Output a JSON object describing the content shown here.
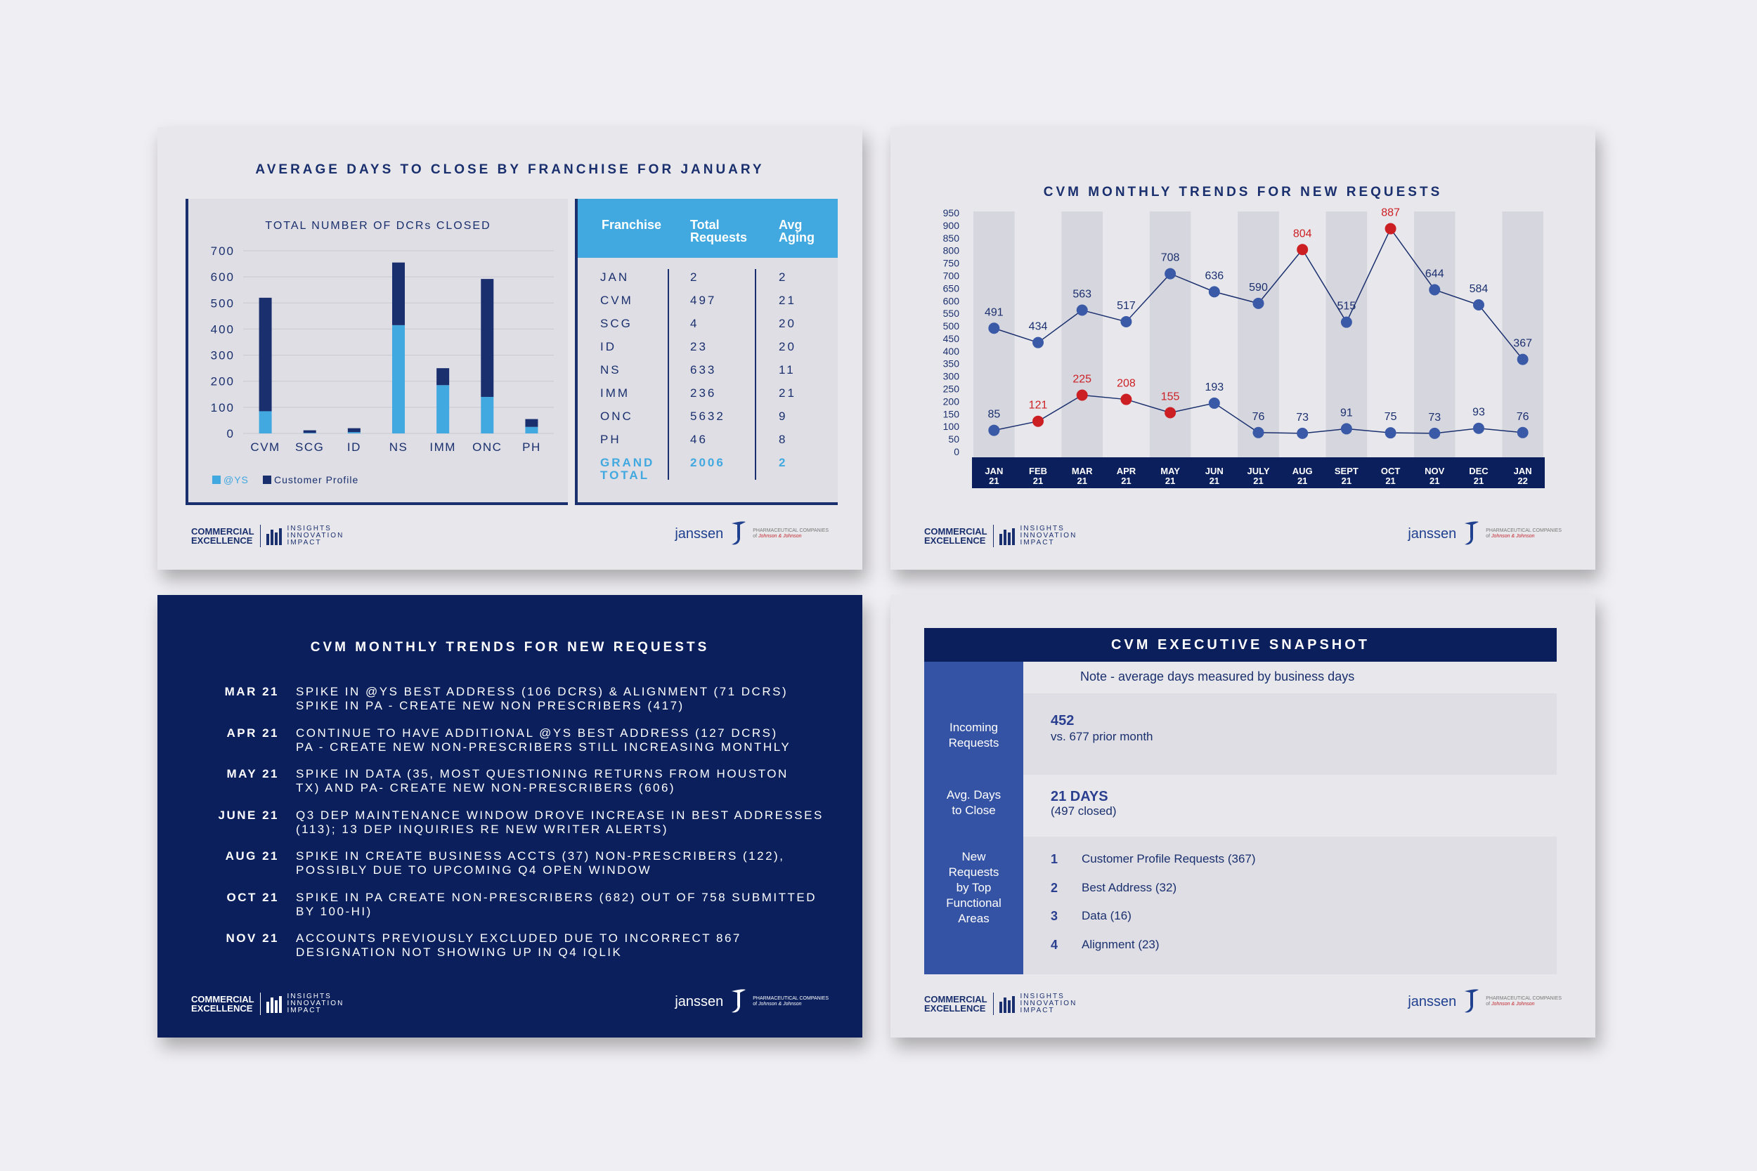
{
  "footer": {
    "ce_line1": "COMMERCIAL",
    "ce_line2": "EXCELLENCE",
    "iii_line1": "INSIGHTS",
    "iii_line2": "INNOVATION",
    "iii_line3": "IMPACT",
    "janssen": "janssen",
    "pharma_line1": "PHARMACEUTICAL COMPANIES",
    "pharma_of": "of",
    "pharma_jj": "Johnson & Johnson"
  },
  "slide1": {
    "title": "AVERAGE DAYS TO CLOSE BY FRANCHISE FOR JANUARY",
    "table": {
      "headers": [
        "Franchise",
        "Total",
        "Requests",
        "Avg",
        "Aging"
      ],
      "rows": [
        [
          "JAN",
          "2",
          "2"
        ],
        [
          "CVM",
          "497",
          "21"
        ],
        [
          "SCG",
          "4",
          "20"
        ],
        [
          "ID",
          "23",
          "20"
        ],
        [
          "NS",
          "633",
          "11"
        ],
        [
          "IMM",
          "236",
          "21"
        ],
        [
          "ONC",
          "5632",
          "9"
        ],
        [
          "PH",
          "46",
          "8"
        ]
      ],
      "total_label_1": "GRAND",
      "total_label_2": "TOTAL",
      "total_requests": "2006",
      "total_aging": "2"
    }
  },
  "slide2": {
    "title": "CVM MONTHLY TRENDS FOR NEW REQUESTS"
  },
  "slide3": {
    "title": "CVM MONTHLY TRENDS FOR NEW REQUESTS",
    "items": [
      {
        "date": "MAR 21",
        "line1": "SPIKE IN @YS BEST ADDRESS (106 DCRS) & ALIGNMENT (71 DCRS)",
        "line2": "SPIKE IN PA - CREATE NEW NON PRESCRIBERS (417)"
      },
      {
        "date": "APR 21",
        "line1": "CONTINUE TO HAVE ADDITIONAL @YS BEST ADDRESS (127 DCRS)",
        "line2": "PA - CREATE NEW NON-PRESCRIBERS STILL INCREASING MONTHLY"
      },
      {
        "date": "MAY 21",
        "line1": "SPIKE IN DATA (35, MOST QUESTIONING RETURNS FROM HOUSTON",
        "line2": "TX) AND PA- CREATE NEW NON-PRESCRIBERS (606)"
      },
      {
        "date": "JUNE 21",
        "line1": "Q3 DEP MAINTENANCE WINDOW DROVE INCREASE IN BEST ADDRESSES",
        "line2": "(113); 13 DEP INQUIRIES RE NEW WRITER ALERTS)"
      },
      {
        "date": "AUG 21",
        "line1": "SPIKE IN CREATE BUSINESS ACCTS (37) NON-PRESCRIBERS (122),",
        "line2": "POSSIBLY DUE TO UPCOMING Q4 OPEN WINDOW"
      },
      {
        "date": "OCT 21",
        "line1": "SPIKE IN PA CREATE NON-PRESCRIBERS  (682) OUT OF 758 SUBMITTED",
        "line2": "BY 100-HI)"
      },
      {
        "date": "NOV 21",
        "line1": "ACCOUNTS PREVIOUSLY EXCLUDED DUE TO INCORRECT 867",
        "line2": "DESIGNATION NOT SHOWING UP IN Q4 IQLIK"
      }
    ]
  },
  "slide4": {
    "title": "CVM EXECUTIVE SNAPSHOT",
    "note": "Note - average days measured by business days",
    "incoming_label_1": "Incoming",
    "incoming_label_2": "Requests",
    "incoming_value": "452",
    "incoming_sub": "vs. 677 prior month",
    "avg_label_1": "Avg. Days",
    "avg_label_2": "to Close",
    "avg_value": "21 DAYS",
    "avg_sub": "(497 closed)",
    "areas_label": [
      "New",
      "Requests",
      "by Top",
      "Functional",
      "Areas"
    ],
    "areas": [
      {
        "num": "1",
        "text": "Customer Profile Requests (367)"
      },
      {
        "num": "2",
        "text": "Best Address (32)"
      },
      {
        "num": "3",
        "text": "Data (16)"
      },
      {
        "num": "4",
        "text": "Alignment (23)"
      }
    ]
  },
  "colors": {
    "navy": "#1a2f6e",
    "dark_navy": "#0a1f5c",
    "light_blue": "#41a8e0",
    "point_blue": "#3a5aa8",
    "point_red": "#cc1f24"
  },
  "chart_data": [
    {
      "type": "bar",
      "title": "TOTAL NUMBER OF DCRs CLOSED",
      "categories": [
        "CVM",
        "SCG",
        "ID",
        "NS",
        "IMM",
        "ONC",
        "PH"
      ],
      "series": [
        {
          "name": "@YS",
          "values": [
            85,
            2,
            5,
            415,
            185,
            140,
            25
          ]
        },
        {
          "name": "Customer Profile",
          "values": [
            435,
            10,
            15,
            240,
            65,
            452,
            30
          ]
        }
      ],
      "stacked": true,
      "ylim": [
        0,
        700
      ],
      "yticks": [
        0,
        100,
        200,
        300,
        400,
        500,
        600,
        700
      ],
      "legend": "bottom-left",
      "grid": true
    },
    {
      "type": "line",
      "categories": [
        "JAN 21",
        "FEB 21",
        "MAR 21",
        "APR 21",
        "MAY 21",
        "JUN 21",
        "JULY 21",
        "AUG 21",
        "SEPT 21",
        "OCT 21",
        "NOV 21",
        "DEC 21",
        "JAN 22"
      ],
      "series": [
        {
          "values": [
            491,
            434,
            563,
            517,
            708,
            636,
            590,
            804,
            515,
            887,
            644,
            584,
            367
          ],
          "highlights": [
            7,
            9
          ]
        },
        {
          "values": [
            85,
            121,
            225,
            208,
            155,
            193,
            76,
            73,
            91,
            75,
            73,
            93,
            76
          ],
          "highlights": [
            1,
            2,
            3,
            4
          ]
        }
      ],
      "ylim": [
        0,
        950
      ],
      "yticks": [
        0,
        50,
        100,
        150,
        200,
        250,
        300,
        350,
        400,
        450,
        500,
        550,
        600,
        650,
        700,
        750,
        800,
        850,
        900,
        950
      ],
      "legend": "none",
      "grid": false
    }
  ]
}
